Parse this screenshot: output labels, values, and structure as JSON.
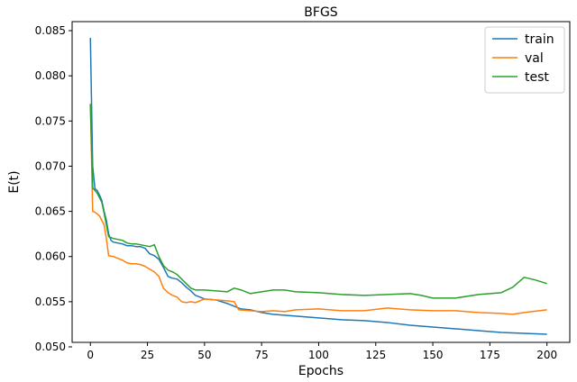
{
  "chart_data": {
    "type": "line",
    "title": "BFGS",
    "xlabel": "Epochs",
    "ylabel": "E(t)",
    "xlim": [
      -8,
      210
    ],
    "ylim": [
      0.0505,
      0.086
    ],
    "xticks": [
      "0",
      "25",
      "50",
      "75",
      "100",
      "125",
      "150",
      "175",
      "200"
    ],
    "yticks": [
      "0.050",
      "0.055",
      "0.060",
      "0.065",
      "0.070",
      "0.075",
      "0.080",
      "0.085"
    ],
    "grid": false,
    "legend_position": "top-right",
    "series": [
      {
        "name": "train",
        "color": "#1f77b4",
        "points": [
          [
            0,
            0.0842
          ],
          [
            1,
            0.07
          ],
          [
            2,
            0.0675
          ],
          [
            3,
            0.0673
          ],
          [
            4,
            0.0668
          ],
          [
            5,
            0.0662
          ],
          [
            6,
            0.065
          ],
          [
            7,
            0.064
          ],
          [
            8,
            0.0625
          ],
          [
            9,
            0.0618
          ],
          [
            10,
            0.0616
          ],
          [
            12,
            0.0615
          ],
          [
            14,
            0.0614
          ],
          [
            16,
            0.0612
          ],
          [
            18,
            0.0612
          ],
          [
            20,
            0.0611
          ],
          [
            22,
            0.0611
          ],
          [
            24,
            0.0609
          ],
          [
            26,
            0.0603
          ],
          [
            28,
            0.0601
          ],
          [
            30,
            0.0597
          ],
          [
            32,
            0.0588
          ],
          [
            34,
            0.0578
          ],
          [
            36,
            0.0576
          ],
          [
            38,
            0.0575
          ],
          [
            40,
            0.0571
          ],
          [
            42,
            0.0566
          ],
          [
            44,
            0.0562
          ],
          [
            46,
            0.0557
          ],
          [
            48,
            0.0555
          ],
          [
            50,
            0.0553
          ],
          [
            55,
            0.0552
          ],
          [
            60,
            0.0548
          ],
          [
            63,
            0.0545
          ],
          [
            66,
            0.0542
          ],
          [
            70,
            0.0541
          ],
          [
            75,
            0.0538
          ],
          [
            80,
            0.0536
          ],
          [
            85,
            0.0535
          ],
          [
            90,
            0.0534
          ],
          [
            100,
            0.0532
          ],
          [
            110,
            0.053
          ],
          [
            120,
            0.0529
          ],
          [
            130,
            0.0527
          ],
          [
            140,
            0.0524
          ],
          [
            150,
            0.0522
          ],
          [
            160,
            0.052
          ],
          [
            170,
            0.0518
          ],
          [
            180,
            0.0516
          ],
          [
            190,
            0.0515
          ],
          [
            200,
            0.0514
          ]
        ]
      },
      {
        "name": "val",
        "color": "#ff7f0e",
        "points": [
          [
            0,
            0.0768
          ],
          [
            1,
            0.065
          ],
          [
            2,
            0.0649
          ],
          [
            3,
            0.0647
          ],
          [
            4,
            0.0645
          ],
          [
            5,
            0.064
          ],
          [
            6,
            0.0635
          ],
          [
            7,
            0.062
          ],
          [
            8,
            0.0601
          ],
          [
            10,
            0.06
          ],
          [
            12,
            0.0598
          ],
          [
            14,
            0.0596
          ],
          [
            16,
            0.0593
          ],
          [
            18,
            0.0592
          ],
          [
            20,
            0.0592
          ],
          [
            22,
            0.0591
          ],
          [
            24,
            0.0589
          ],
          [
            26,
            0.0586
          ],
          [
            28,
            0.0583
          ],
          [
            30,
            0.0578
          ],
          [
            32,
            0.0565
          ],
          [
            34,
            0.056
          ],
          [
            36,
            0.0557
          ],
          [
            38,
            0.0555
          ],
          [
            40,
            0.055
          ],
          [
            42,
            0.0549
          ],
          [
            44,
            0.055
          ],
          [
            46,
            0.0549
          ],
          [
            48,
            0.0551
          ],
          [
            50,
            0.0553
          ],
          [
            55,
            0.0552
          ],
          [
            60,
            0.0551
          ],
          [
            63,
            0.055
          ],
          [
            65,
            0.0541
          ],
          [
            70,
            0.054
          ],
          [
            75,
            0.0539
          ],
          [
            80,
            0.054
          ],
          [
            85,
            0.0539
          ],
          [
            90,
            0.0541
          ],
          [
            100,
            0.0542
          ],
          [
            110,
            0.054
          ],
          [
            120,
            0.054
          ],
          [
            130,
            0.0543
          ],
          [
            140,
            0.0541
          ],
          [
            150,
            0.054
          ],
          [
            160,
            0.054
          ],
          [
            170,
            0.0538
          ],
          [
            180,
            0.0537
          ],
          [
            185,
            0.0536
          ],
          [
            190,
            0.0538
          ],
          [
            200,
            0.0541
          ]
        ]
      },
      {
        "name": "test",
        "color": "#2ca02c",
        "points": [
          [
            0,
            0.0769
          ],
          [
            1,
            0.0676
          ],
          [
            2,
            0.0673
          ],
          [
            3,
            0.067
          ],
          [
            4,
            0.0665
          ],
          [
            5,
            0.066
          ],
          [
            6,
            0.0648
          ],
          [
            7,
            0.0635
          ],
          [
            8,
            0.0622
          ],
          [
            10,
            0.062
          ],
          [
            12,
            0.0619
          ],
          [
            14,
            0.0618
          ],
          [
            16,
            0.0615
          ],
          [
            18,
            0.0614
          ],
          [
            20,
            0.0614
          ],
          [
            22,
            0.0613
          ],
          [
            24,
            0.0612
          ],
          [
            26,
            0.0611
          ],
          [
            28,
            0.0613
          ],
          [
            30,
            0.06
          ],
          [
            32,
            0.059
          ],
          [
            34,
            0.0585
          ],
          [
            36,
            0.0583
          ],
          [
            38,
            0.058
          ],
          [
            40,
            0.0575
          ],
          [
            42,
            0.057
          ],
          [
            44,
            0.0565
          ],
          [
            46,
            0.0563
          ],
          [
            48,
            0.0563
          ],
          [
            50,
            0.0563
          ],
          [
            55,
            0.0562
          ],
          [
            60,
            0.0561
          ],
          [
            63,
            0.0565
          ],
          [
            66,
            0.0563
          ],
          [
            70,
            0.0559
          ],
          [
            75,
            0.0561
          ],
          [
            80,
            0.0563
          ],
          [
            85,
            0.0563
          ],
          [
            90,
            0.0561
          ],
          [
            100,
            0.056
          ],
          [
            110,
            0.0558
          ],
          [
            120,
            0.0557
          ],
          [
            130,
            0.0558
          ],
          [
            140,
            0.0559
          ],
          [
            145,
            0.0557
          ],
          [
            150,
            0.0554
          ],
          [
            160,
            0.0554
          ],
          [
            170,
            0.0558
          ],
          [
            180,
            0.056
          ],
          [
            185,
            0.0566
          ],
          [
            190,
            0.0577
          ],
          [
            195,
            0.0574
          ],
          [
            200,
            0.057
          ]
        ]
      }
    ]
  }
}
